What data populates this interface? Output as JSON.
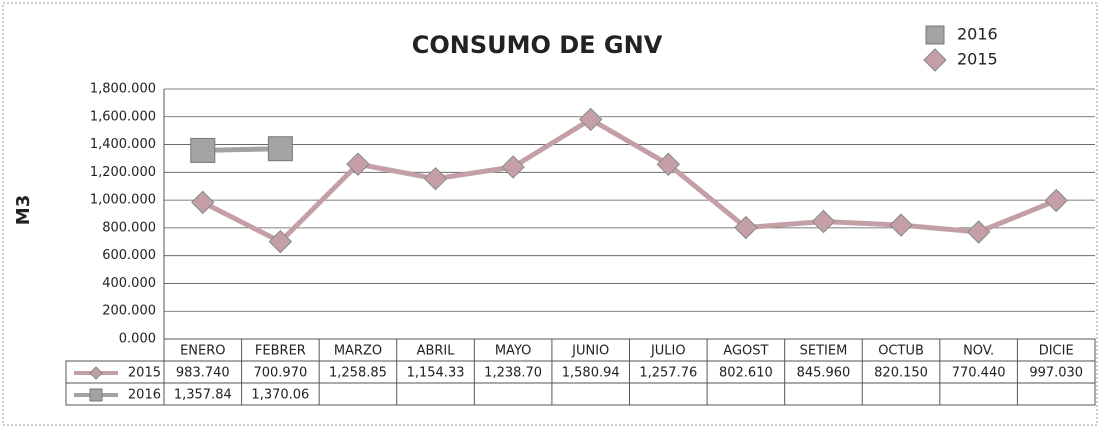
{
  "chart_data": {
    "type": "line",
    "title": "CONSUMO DE GNV",
    "y_label": "M3",
    "categories": [
      "ENERO",
      "FEBRER",
      "MARZO",
      "ABRIL",
      "MAYO",
      "JUNIO",
      "JULIO",
      "AGOST",
      "SETIEM",
      "OCTUB",
      "NOV.",
      "DICIE"
    ],
    "series": [
      {
        "name": "2015",
        "color": "#c4a0a6",
        "marker": "diamond",
        "values": [
          983.74,
          700.97,
          1258.85,
          1154.33,
          1238.7,
          1580.94,
          1257.76,
          802.61,
          845.96,
          820.15,
          770.44,
          997.03
        ],
        "value_labels": [
          "983.740",
          "700.970",
          "1,258.85",
          "1,154.33",
          "1,238.70",
          "1,580.94",
          "1,257.76",
          "802.610",
          "845.960",
          "820.150",
          "770.440",
          "997.030"
        ]
      },
      {
        "name": "2016",
        "color": "#a3a3a3",
        "marker": "square",
        "values": [
          1357.84,
          1370.06,
          null,
          null,
          null,
          null,
          null,
          null,
          null,
          null,
          null,
          null
        ],
        "value_labels": [
          "1,357.84",
          "1,370.06",
          null,
          null,
          null,
          null,
          null,
          null,
          null,
          null,
          null,
          null
        ]
      }
    ],
    "ylim": [
      0,
      1800
    ],
    "yticks": [
      {
        "value": 0,
        "label": "0.000"
      },
      {
        "value": 200,
        "label": "200.000"
      },
      {
        "value": 400,
        "label": "400.000"
      },
      {
        "value": 600,
        "label": "600.000"
      },
      {
        "value": 800,
        "label": "800.000"
      },
      {
        "value": 1000,
        "label": "1,000.000"
      },
      {
        "value": 1200,
        "label": "1,200.000"
      },
      {
        "value": 1400,
        "label": "1,400.000"
      },
      {
        "value": 1600,
        "label": "1,600.000"
      },
      {
        "value": 1800,
        "label": "1,800.000"
      }
    ],
    "grid": true,
    "legend": "top-right",
    "data_table": true
  }
}
